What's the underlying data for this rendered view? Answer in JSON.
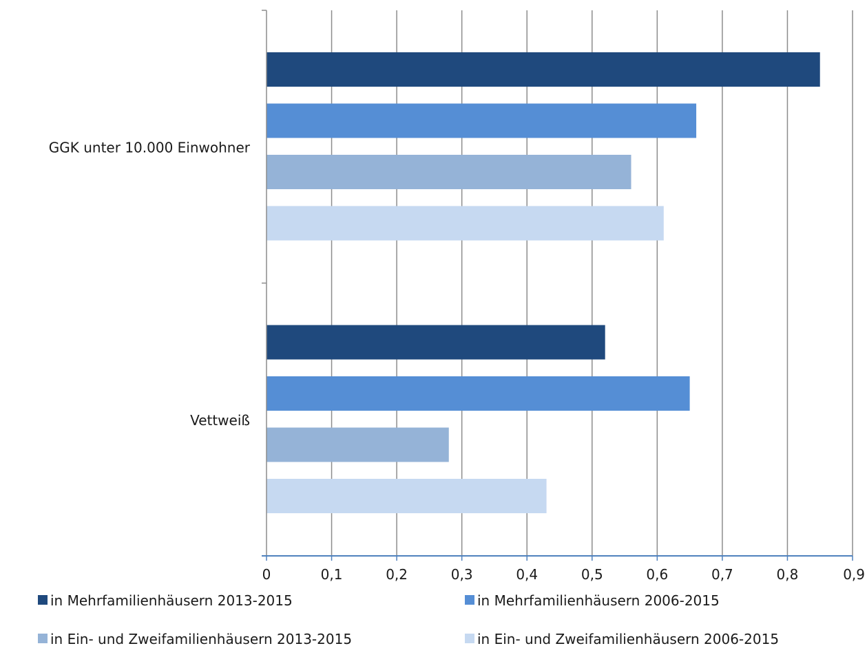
{
  "chart_data": {
    "type": "bar",
    "orientation": "horizontal",
    "title": "",
    "xlabel": "",
    "ylabel": "",
    "xlim": [
      0,
      0.9
    ],
    "x_ticks": [
      "0",
      "0,1",
      "0,2",
      "0,3",
      "0,4",
      "0,5",
      "0,6",
      "0,7",
      "0,8",
      "0,9"
    ],
    "x_tick_values": [
      0,
      0.1,
      0.2,
      0.3,
      0.4,
      0.5,
      0.6,
      0.7,
      0.8,
      0.9
    ],
    "grid": true,
    "legend_position": "bottom",
    "categories": [
      "GGK unter 10.000 Einwohner",
      "Vettweiß"
    ],
    "series": [
      {
        "name": "in Mehrfamilienhäusern 2013-2015",
        "color": "#1f497d",
        "values": [
          0.85,
          0.52
        ]
      },
      {
        "name": "in Mehrfamilienhäusern 2006-2015",
        "color": "#558ed5",
        "values": [
          0.66,
          0.65
        ]
      },
      {
        "name": "in Ein- und Zweifamilienhäusern 2013-2015",
        "color": "#95b3d7",
        "values": [
          0.56,
          0.28
        ]
      },
      {
        "name": "in Ein- und Zweifamilienhäusern 2006-2015",
        "color": "#c6d9f1",
        "values": [
          0.61,
          0.43
        ]
      }
    ]
  }
}
